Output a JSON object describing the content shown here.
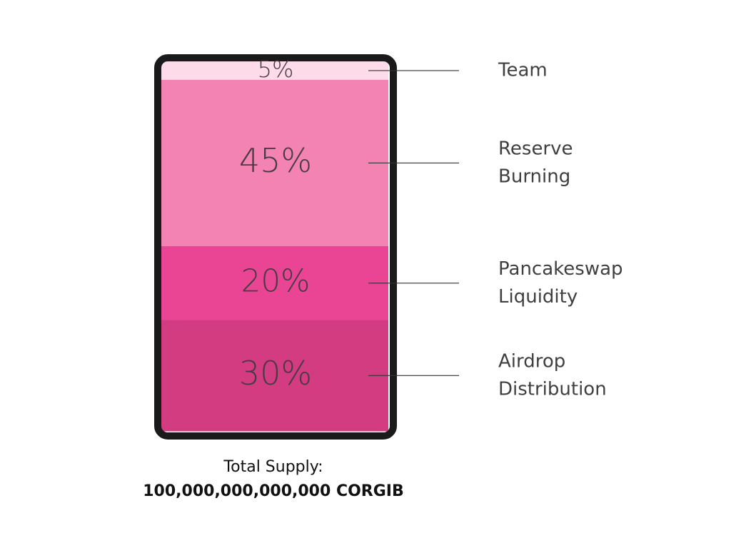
{
  "chart_data": {
    "type": "bar",
    "subtype": "stacked-100",
    "categories": [
      "Team",
      "Reserve Burning",
      "Pancakeswap Liquidity",
      "Airdrop Distribution"
    ],
    "values": [
      5,
      45,
      20,
      30
    ],
    "value_labels": [
      "5%",
      "45%",
      "20%",
      "30%"
    ],
    "legend_lines": [
      [
        "Team"
      ],
      [
        "Reserve",
        "Burning"
      ],
      [
        "Pancakeswap",
        "Liquidity"
      ],
      [
        "Airdrop",
        "Distribution"
      ]
    ],
    "colors": [
      "#fddbe9",
      "#f383b3",
      "#ea4595",
      "#d33c80"
    ],
    "frame_color": "#1a1a1a",
    "legend_position": "right"
  },
  "footer": {
    "supply_label": "Total Supply:",
    "supply_value": "100,000,000,000,000 CORGIB"
  }
}
